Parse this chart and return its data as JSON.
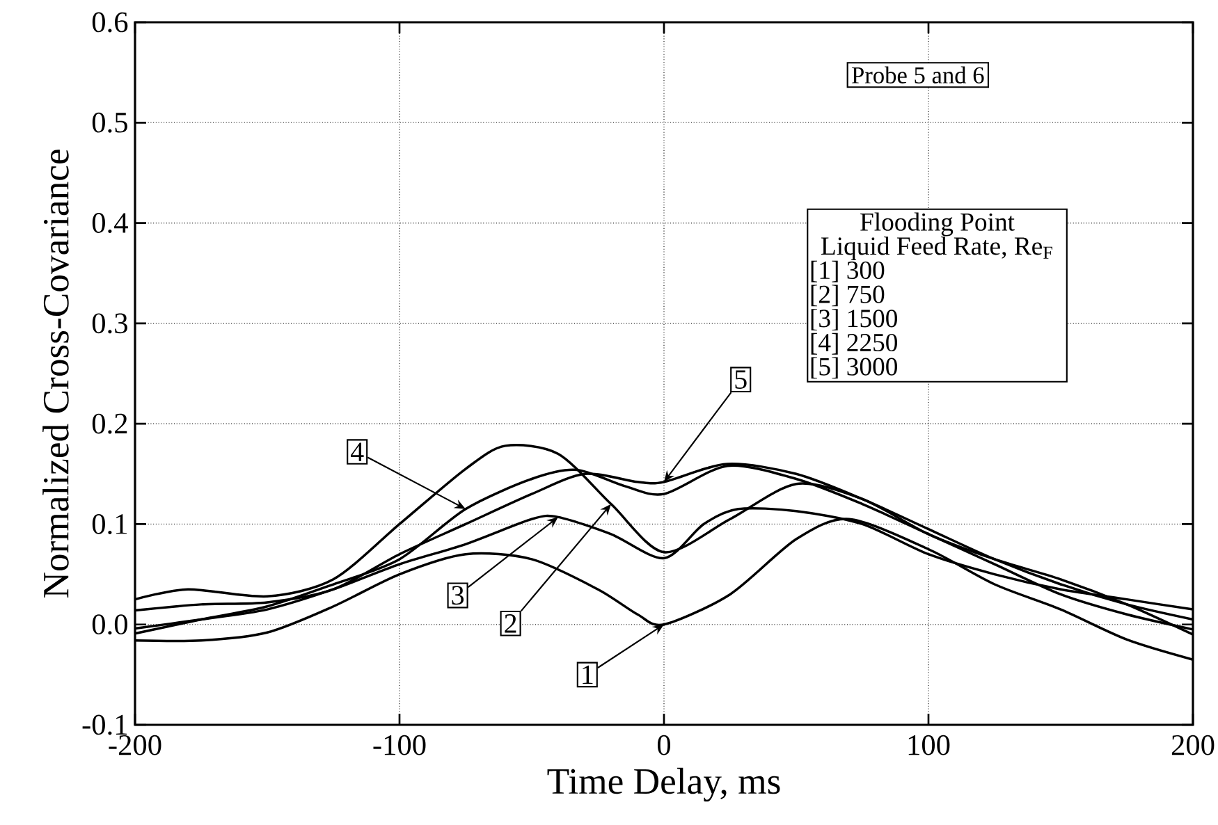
{
  "chart_data": {
    "type": "line",
    "xlabel": "Time Delay, ms",
    "ylabel": "Normalized Cross-Covariance",
    "legend_title": "Flooding Point",
    "grid": true,
    "xlim": [
      -200,
      200
    ],
    "xticks": [
      -200,
      -100,
      0,
      100,
      200
    ],
    "ylim": [
      -0.1,
      0.6
    ],
    "yticks": [
      -0.1,
      {
        "value": 0,
        "label": "0.0"
      },
      0.1,
      0.2,
      0.3,
      0.4,
      0.5,
      0.6
    ],
    "series": [
      {
        "name": "1",
        "color": "#000000",
        "x": [
          -200,
          -175,
          -150,
          -125,
          -100,
          -75,
          -50,
          -25,
          -10,
          0,
          25,
          50,
          70,
          100,
          125,
          150,
          175,
          200
        ],
        "values": [
          -0.016,
          -0.016,
          -0.008,
          0.018,
          0.05,
          0.07,
          0.065,
          0.035,
          0.01,
          0.0,
          0.03,
          0.085,
          0.105,
          0.075,
          0.04,
          0.015,
          -0.015,
          -0.035
        ]
      },
      {
        "name": "2",
        "color": "#000000",
        "x": [
          -200,
          -180,
          -150,
          -125,
          -100,
          -75,
          -60,
          -40,
          -20,
          0,
          25,
          50,
          75,
          100,
          125,
          150,
          175,
          200
        ],
        "values": [
          0.025,
          0.035,
          0.028,
          0.045,
          0.1,
          0.155,
          0.178,
          0.17,
          0.12,
          0.072,
          0.105,
          0.14,
          0.125,
          0.09,
          0.065,
          0.045,
          0.02,
          -0.01
        ]
      },
      {
        "name": "3",
        "color": "#000000",
        "x": [
          -200,
          -175,
          -150,
          -125,
          -100,
          -75,
          -50,
          -40,
          -20,
          0,
          15,
          28,
          50,
          75,
          100,
          125,
          150,
          175,
          200
        ],
        "values": [
          -0.004,
          0.005,
          0.015,
          0.035,
          0.06,
          0.08,
          0.105,
          0.107,
          0.09,
          0.066,
          0.1,
          0.115,
          0.113,
          0.1,
          0.07,
          0.05,
          0.035,
          0.025,
          0.015
        ]
      },
      {
        "name": "4",
        "color": "#000000",
        "x": [
          -200,
          -175,
          -150,
          -125,
          -100,
          -75,
          -50,
          -33,
          -15,
          0,
          24,
          50,
          75,
          100,
          125,
          150,
          175,
          200
        ],
        "values": [
          -0.009,
          0.005,
          0.018,
          0.04,
          0.065,
          0.115,
          0.145,
          0.154,
          0.138,
          0.13,
          0.158,
          0.145,
          0.12,
          0.09,
          0.06,
          0.03,
          0.01,
          -0.005
        ]
      },
      {
        "name": "5",
        "color": "#000000",
        "x": [
          -200,
          -175,
          -150,
          -125,
          -100,
          -75,
          -50,
          -30,
          -10,
          0,
          24,
          50,
          75,
          100,
          125,
          150,
          175,
          200
        ],
        "values": [
          0.014,
          0.02,
          0.022,
          0.035,
          0.07,
          0.1,
          0.13,
          0.15,
          0.142,
          0.142,
          0.16,
          0.15,
          0.125,
          0.095,
          0.065,
          0.04,
          0.02,
          0.005
        ]
      }
    ],
    "annotations": [
      "Probe 5 and 6",
      "Liquid Feed Rate, Re$_{F}$",
      "[1] 300",
      "[2] 750",
      "[3] 1500",
      "[4] 2250",
      "[5] 3000"
    ]
  }
}
